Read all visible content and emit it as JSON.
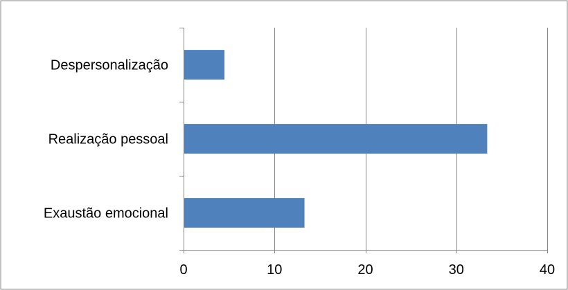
{
  "chart_data": {
    "type": "bar",
    "orientation": "horizontal",
    "title": "",
    "xlabel": "",
    "ylabel": "",
    "categories": [
      "Exaustão emocional",
      "Realização pessoal",
      "Despersonalização"
    ],
    "values": [
      13.3,
      33.4,
      4.5
    ],
    "xlim": [
      0,
      40
    ],
    "xticks": [
      0,
      10,
      20,
      30,
      40
    ],
    "grid": "vertical",
    "legend": "none",
    "bar_color": "#4f81bd",
    "grid_color": "#868686"
  }
}
